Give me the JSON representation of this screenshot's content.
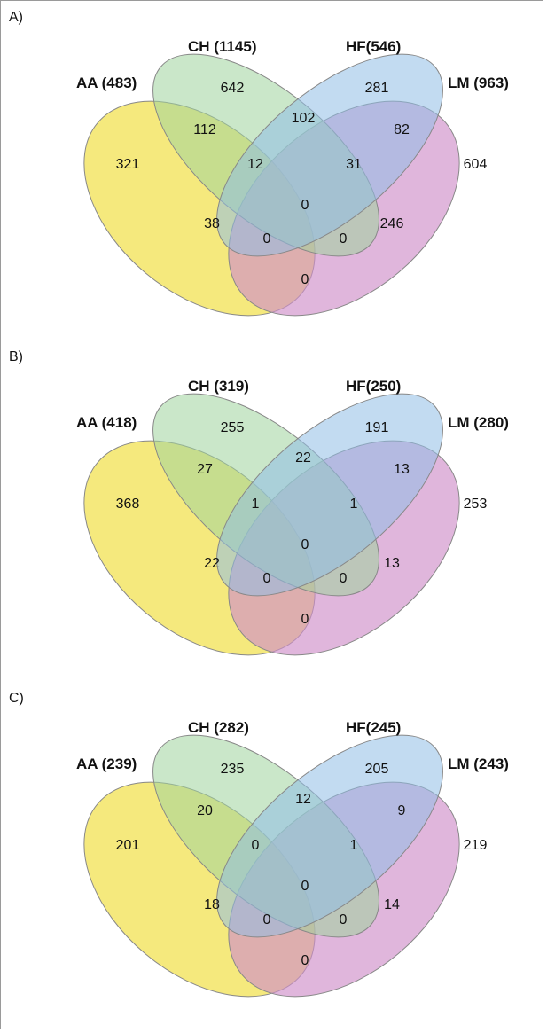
{
  "colors": {
    "AA": "#f3e45c",
    "CH": "#9fd39c",
    "HF": "#8fbde6",
    "LM": "#cf8fca",
    "outline": "#888888"
  },
  "panels": [
    {
      "label": "A)",
      "sets": {
        "AA": "AA (483)",
        "CH": "CH (1145)",
        "HF": "HF(546)",
        "LM": "LM (963)"
      },
      "regions": {
        "aa_only": "321",
        "ch_only": "642",
        "hf_only": "281",
        "lm_only": "604",
        "aa_ch": "112",
        "ch_hf": "102",
        "hf_lm": "82",
        "aa_ch_hf": "12",
        "ch_hf_lm": "31",
        "all": "0",
        "aa_ch_lm": "38",
        "aa_hf_lm": "246",
        "aa_ch_hf_lm_left": "0",
        "aa_ch_hf_lm_right": "0",
        "aa_lm": "0"
      }
    },
    {
      "label": "B)",
      "sets": {
        "AA": "AA (418)",
        "CH": "CH (319)",
        "HF": "HF(250)",
        "LM": "LM (280)"
      },
      "regions": {
        "aa_only": "368",
        "ch_only": "255",
        "hf_only": "191",
        "lm_only": "253",
        "aa_ch": "27",
        "ch_hf": "22",
        "hf_lm": "13",
        "aa_ch_hf": "1",
        "ch_hf_lm": "1",
        "all": "0",
        "aa_ch_lm": "22",
        "aa_hf_lm": "13",
        "aa_ch_hf_lm_left": "0",
        "aa_ch_hf_lm_right": "0",
        "aa_lm": "0"
      }
    },
    {
      "label": "C)",
      "sets": {
        "AA": "AA (239)",
        "CH": "CH (282)",
        "HF": "HF(245)",
        "LM": "LM (243)"
      },
      "regions": {
        "aa_only": "201",
        "ch_only": "235",
        "hf_only": "205",
        "lm_only": "219",
        "aa_ch": "20",
        "ch_hf": "12",
        "hf_lm": "9",
        "aa_ch_hf": "0",
        "ch_hf_lm": "1",
        "all": "0",
        "aa_ch_lm": "18",
        "aa_hf_lm": "14",
        "aa_ch_hf_lm_left": "0",
        "aa_ch_hf_lm_right": "0",
        "aa_lm": "0"
      }
    }
  ]
}
